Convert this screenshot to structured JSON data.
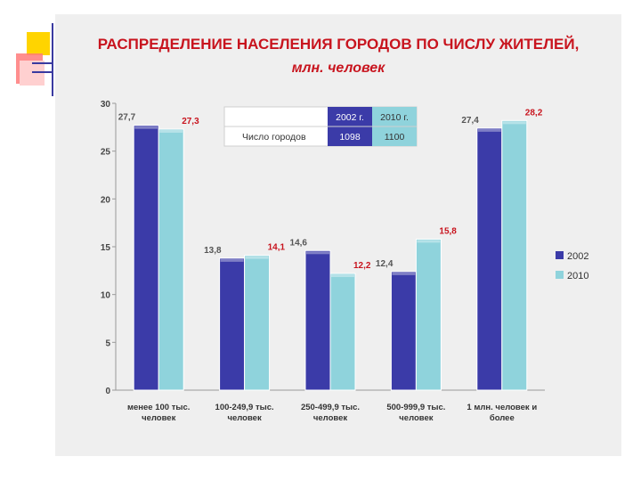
{
  "chart_data": {
    "type": "bar",
    "title": "РАСПРЕДЕЛЕНИЕ НАСЕЛЕНИЯ ГОРОДОВ ПО ЧИСЛУ ЖИТЕЛЕЙ,",
    "subtitle": "млн. человек",
    "categories": [
      [
        "менее 100 тыс.",
        "человек"
      ],
      [
        "100-249,9 тыс.",
        "человек"
      ],
      [
        "250-499,9 тыс.",
        "человек"
      ],
      [
        "500-999,9 тыс.",
        "человек"
      ],
      [
        "1 млн. человек и",
        "более"
      ]
    ],
    "series": [
      {
        "name": "2002",
        "values": [
          27.7,
          13.8,
          14.6,
          12.4,
          27.4
        ],
        "labels": [
          "27,7",
          "13,8",
          "14,6",
          "12,4",
          "27,4"
        ],
        "color": "#3b3ba8",
        "label_color": "#555555"
      },
      {
        "name": "2010",
        "values": [
          27.3,
          14.1,
          12.2,
          15.8,
          28.2
        ],
        "labels": [
          "27,3",
          "14,1",
          "12,2",
          "15,8",
          "28,2"
        ],
        "color": "#8fd3dc",
        "label_color": "#c8141e"
      }
    ],
    "yticks": [
      "0",
      "5",
      "10",
      "15",
      "20",
      "25",
      "30"
    ],
    "ylim": [
      0,
      30
    ],
    "legend": "right",
    "grid": false,
    "inset_table": {
      "headers": [
        "",
        "2002 г.",
        "2010 г."
      ],
      "row_label": "Число городов",
      "values": [
        "1098",
        "1100"
      ]
    }
  }
}
